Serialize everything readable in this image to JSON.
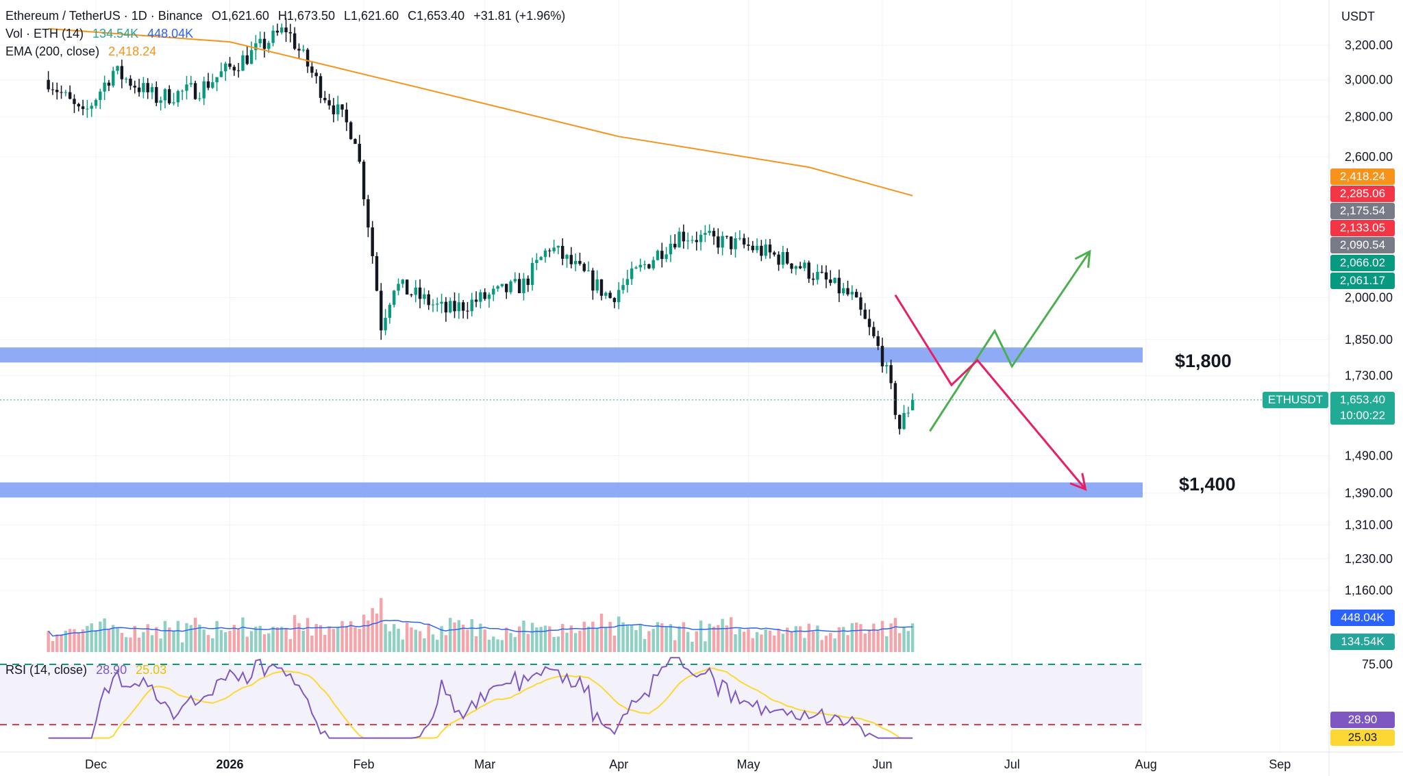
{
  "legend": {
    "symbol_line": "Ethereum / TetherUS · 1D · Binance",
    "open": "O1,621.60",
    "high": "H1,673.50",
    "low": "L1,621.60",
    "close": "C1,653.40",
    "change": "+31.81 (+1.96%)",
    "volume_label": "Vol · ETH (14)",
    "volume_value": "134.54K",
    "volume_ma": "448.04K",
    "ema_label": "EMA (200, close)",
    "ema_value": "2,418.24",
    "rsi_label": "RSI (14, close)",
    "rsi_value": "28.90",
    "rsi_ma": "25.03"
  },
  "price_axis": {
    "currency": "USDT",
    "ticks": [
      "3,200.00",
      "3,000.00",
      "2,800.00",
      "2,600.00",
      "2,000.00",
      "1,850.00",
      "1,730.00",
      "1,490.00",
      "1,390.00",
      "1,310.00",
      "1,230.00",
      "1,160.00"
    ],
    "rsi_ticks": [
      "75.00"
    ]
  },
  "price_tags": [
    {
      "label": "2,418.24",
      "color": "#f7931a"
    },
    {
      "label": "2,285.06",
      "color": "#f23645"
    },
    {
      "label": "2,175.54",
      "color": "#787b86"
    },
    {
      "label": "2,133.05",
      "color": "#f23645"
    },
    {
      "label": "2,090.54",
      "color": "#787b86"
    },
    {
      "label": "2,066.02",
      "color": "#089981"
    },
    {
      "label": "2,061.17",
      "color": "#089981"
    }
  ],
  "current_price": {
    "symbol": "ETHUSDT",
    "price": "1,653.40",
    "countdown": "10:00:22",
    "color": "#22ab94"
  },
  "volume_tags": [
    {
      "label": "448.04K",
      "color": "#2962ff"
    },
    {
      "label": "134.54K",
      "color": "#26a69a"
    }
  ],
  "rsi_tags": [
    {
      "label": "28.90",
      "color": "#7e57c2"
    },
    {
      "label": "25.03",
      "color": "#fdd835"
    }
  ],
  "time_axis": [
    "Dec",
    "2026",
    "Feb",
    "Mar",
    "Apr",
    "May",
    "Jun",
    "Jul",
    "Aug",
    "Sep"
  ],
  "levels": [
    {
      "label": "$1,800",
      "value": 1800
    },
    {
      "label": "$1,400",
      "value": 1400
    }
  ],
  "chart_data": {
    "type": "candlestick",
    "title": "Ethereum / TetherUS · 1D · Binance",
    "ylabel": "USDT",
    "ylim": [
      1390,
      3250
    ],
    "ohlc_anchors": [
      {
        "date": "2025-11-20",
        "close": 3000
      },
      {
        "date": "2025-11-28",
        "close": 2800
      },
      {
        "date": "2025-12-05",
        "close": 3050
      },
      {
        "date": "2025-12-15",
        "close": 2900
      },
      {
        "date": "2025-12-25",
        "close": 2950
      },
      {
        "date": "2026-01-06",
        "close": 3150
      },
      {
        "date": "2026-01-14",
        "close": 3300
      },
      {
        "date": "2026-01-22",
        "close": 2950
      },
      {
        "date": "2026-01-30",
        "close": 2700
      },
      {
        "date": "2026-02-05",
        "close": 1900
      },
      {
        "date": "2026-02-08",
        "close": 2050
      },
      {
        "date": "2026-02-20",
        "close": 1950
      },
      {
        "date": "2026-03-10",
        "close": 2050
      },
      {
        "date": "2026-03-16",
        "close": 2200
      },
      {
        "date": "2026-03-30",
        "close": 2000
      },
      {
        "date": "2026-04-15",
        "close": 2250
      },
      {
        "date": "2026-05-01",
        "close": 2200
      },
      {
        "date": "2026-05-12",
        "close": 2130
      },
      {
        "date": "2026-05-25",
        "close": 2000
      },
      {
        "date": "2026-06-01",
        "close": 1790
      },
      {
        "date": "2026-06-05",
        "close": 1570
      },
      {
        "date": "2026-06-08",
        "close": 1653.4
      }
    ],
    "last_candle": {
      "open": 1621.6,
      "high": 1673.5,
      "low": 1621.6,
      "close": 1653.4
    },
    "ema200": [
      {
        "date": "2025-11-20",
        "value": 3300
      },
      {
        "date": "2026-01-01",
        "value": 3220
      },
      {
        "date": "2026-02-15",
        "value": 2950
      },
      {
        "date": "2026-04-01",
        "value": 2700
      },
      {
        "date": "2026-05-15",
        "value": 2550
      },
      {
        "date": "2026-06-08",
        "value": 2418.24
      }
    ],
    "volume_last": "134.54K",
    "volume_ma_last": "448.04K",
    "rsi_last": 28.9,
    "rsi_ma_last": 25.03,
    "rsi_levels": [
      75,
      30
    ],
    "scenario_bullish": [
      {
        "date": "2026-06-12",
        "value": 1560
      },
      {
        "date": "2026-06-27",
        "value": 1880
      },
      {
        "date": "2026-07-01",
        "value": 1760
      },
      {
        "date": "2026-07-19",
        "value": 2180
      }
    ],
    "scenario_bearish": [
      {
        "date": "2026-06-04",
        "value": 2010
      },
      {
        "date": "2026-06-17",
        "value": 1700
      },
      {
        "date": "2026-06-23",
        "value": 1780
      },
      {
        "date": "2026-07-18",
        "value": 1400
      }
    ],
    "zones": [
      1800,
      1400
    ]
  }
}
